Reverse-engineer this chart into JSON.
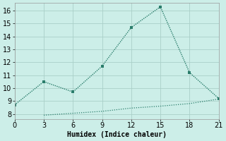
{
  "line1_x": [
    0,
    3,
    6,
    9,
    12,
    15,
    18,
    21
  ],
  "line1_y": [
    8.7,
    10.5,
    9.7,
    11.7,
    14.7,
    16.3,
    11.2,
    9.2
  ],
  "line2_x": [
    3,
    6,
    9,
    12,
    15,
    18,
    21
  ],
  "line2_y": [
    7.9,
    8.05,
    8.2,
    8.45,
    8.6,
    8.8,
    9.15
  ],
  "line_color": "#2a7d6b",
  "bg_color": "#cceee8",
  "grid_color": "#aacfc8",
  "xlabel": "Humidex (Indice chaleur)",
  "xlim": [
    0,
    21
  ],
  "ylim": [
    7.6,
    16.6
  ],
  "xticks": [
    0,
    3,
    6,
    9,
    12,
    15,
    18,
    21
  ],
  "yticks": [
    8,
    9,
    10,
    11,
    12,
    13,
    14,
    15,
    16
  ],
  "axis_fontsize": 7,
  "tick_fontsize": 7
}
